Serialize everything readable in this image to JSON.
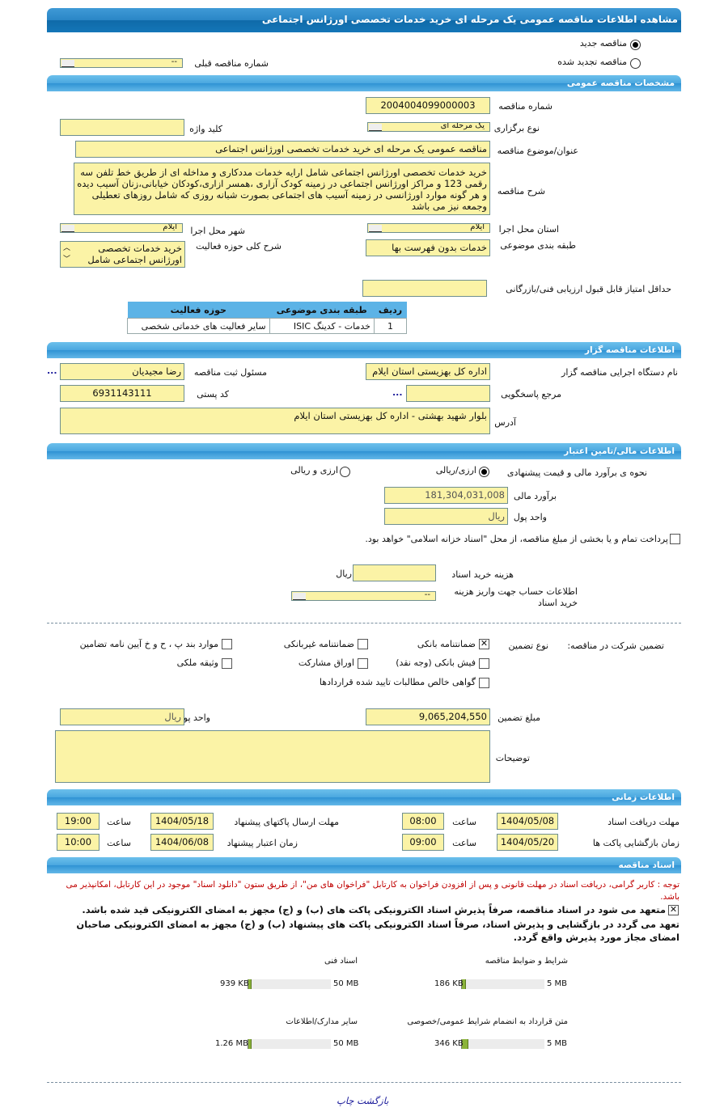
{
  "title": "مشاهده اطلاعات مناقصه عمومی یک مرحله ای خرید خدمات تخصصی اورژانس اجتماعی",
  "tender_type": {
    "new": "مناقصه جدید",
    "renewed": "مناقصه تجدید شده",
    "selected": "new",
    "prev_label": "شماره مناقصه قبلی",
    "prev_value": "--"
  },
  "general": {
    "header": "مشخصات مناقصه عمومی",
    "number_label": "شماره مناقصه",
    "number": "2004004099000003",
    "holding_label": "نوع برگزاری",
    "holding": "یک مرحله ای",
    "keyword_label": "کلید واژه",
    "keyword": "",
    "subject_label": "عنوان/موضوع مناقصه",
    "subject": "مناقصه عمومی یک مرحله ای خرید خدمات تخصصی اورژانس اجتماعی",
    "desc_label": "شرح مناقصه",
    "desc": "خرید خدمات تخصصی اورژانس اجتماعی  شامل ارایه خدمات مددکاری و مداخله ای از طریق خط تلفن سه رقمی 123 و مراکز اورژانس اجتماعی در زمینه کودک آزاری ،همسر ازاری،کودکان خیابانی،زنان آسیب دیده و هر گونه موارد اورژانسی در زمینه آسیب های اجتماعی  بصورت شبانه روزی که شامل روزهای تعطیلی  وجمعه نیز می باشد",
    "province_label": "استان محل اجرا",
    "province": "ایلام",
    "city_label": "شهر محل اجرا",
    "city": "ایلام",
    "category_label": "طبقه بندی موضوعی",
    "category": "خدمات بدون فهرست بها",
    "activity_label": "شرح کلی حوزه فعالیت",
    "activity": "خرید خدمات تخصصی اورژانس اجتماعی شامل",
    "min_score_label": "حداقل امتیاز قابل قبول ارزیابی فنی/بازرگانی",
    "min_score": "",
    "table": {
      "headers": [
        "ردیف",
        "طبقه بندی موضوعی",
        "حوزه فعالیت"
      ],
      "rows": [
        [
          "1",
          "خدمات - کدینگ ISIC",
          "سایر فعالیت های خدماتی شخصی"
        ]
      ]
    }
  },
  "organizer": {
    "header": "اطلاعات مناقصه گزار",
    "org_label": "نام دستگاه اجرایی مناقصه گزار",
    "org": "اداره کل بهزیستی استان ایلام",
    "resp_label": "مسئول ثبت مناقصه",
    "resp": "رضا مجیدیان",
    "more": "...",
    "ref_label": "مرجع پاسخگویی",
    "ref": "",
    "postal_label": "کد پستی",
    "postal": "6931143111",
    "address_label": "آدرس",
    "address": "بلوار شهید بهشتی - اداره کل بهزیستی استان ایلام"
  },
  "finance": {
    "header": "اطلاعات مالی/تامین اعتبار",
    "method_label": "نحوه ی برآورد مالی و قیمت پیشنهادی",
    "opt1": "ارزی/ریالی",
    "opt2": "ارزی و ریالی",
    "selected": "opt1",
    "estimate_label": "برآورد مالی",
    "estimate": "181,304,031,008",
    "currency_label": "واحد پول",
    "currency": "ریال",
    "treasury_text": "پرداخت تمام و یا بخشی از مبلغ مناقصه، از محل \"اسناد خزانه اسلامی\" خواهد بود.",
    "treasury_checked": false,
    "doc_cost_label": "هزینه خرید اسناد",
    "doc_cost": "",
    "doc_cost_unit": "ریال",
    "account_label": "اطلاعات حساب جهت واریز هزینه خرید اسناد",
    "account": "--"
  },
  "guarantee": {
    "label": "تضمین شرکت در مناقصه:",
    "type_label": "نوع تضمین",
    "options": [
      {
        "label": "ضمانتنامه بانکی",
        "checked": true
      },
      {
        "label": "ضمانتنامه غیربانکی",
        "checked": false
      },
      {
        "label": "موارد بند پ ، ح و خ آیین نامه تضامین",
        "checked": false
      },
      {
        "label": "فیش بانکی (وجه نقد)",
        "checked": false
      },
      {
        "label": "اوراق مشارکت",
        "checked": false
      },
      {
        "label": "وثیقه ملکی",
        "checked": false
      },
      {
        "label": "گواهی خالص مطالبات تایید شده قراردادها",
        "checked": false
      }
    ],
    "amount_label": "مبلغ تضمین",
    "amount": "9,065,204,550",
    "currency_label": "واحد پول",
    "currency": "ریال",
    "notes_label": "توضیحات",
    "notes": ""
  },
  "timing": {
    "header": "اطلاعات زمانی",
    "time_label": "ساعت",
    "doc_deadline_label": "مهلت دریافت اسناد",
    "doc_deadline": "1404/05/08",
    "doc_deadline_time": "08:00",
    "submit_label": "مهلت ارسال پاکتهای پیشنهاد",
    "submit": "1404/05/18",
    "submit_time": "19:00",
    "open_label": "زمان بازگشایی پاکت ها",
    "open": "1404/05/20",
    "open_time": "09:00",
    "valid_label": "زمان اعتبار پیشنهاد",
    "valid": "1404/06/08",
    "valid_time": "10:00"
  },
  "docs": {
    "header": "اسناد مناقصه",
    "note": "توجه : کاربر گرامی، دریافت اسناد در مهلت قانونی و پس از افزودن فراخوان به کارتابل \"فراخوان های من\"، از طریق ستون \"دانلود اسناد\" موجود در این کارتابل، امکانپذیر می باشد.",
    "commit1": "متعهد می شود در اسناد مناقصه، صرفاً پذیرش اسناد الکترونیکی پاکت های (ب) و (ج) مجهز به امضای الکترونیکی قید شده باشد.",
    "commit2": "تعهد می گردد در بازگشایی و پذیرش اسناد، صرفاً اسناد الکترونیکی پاکت های پیشنهاد (ب) و (ج) مجهز به امضای الکترونیکی صاحبان امضای مجاز مورد پذیرش واقع گردد.",
    "files": [
      {
        "label": "شرایط و ضوابط مناقصه",
        "size": "186 KB",
        "max": "5 MB",
        "fill_pct": 3.6
      },
      {
        "label": "اسناد فنی",
        "size": "939 KB",
        "max": "50 MB",
        "fill_pct": 1.8
      },
      {
        "label": "متن قرارداد به انضمام شرایط عمومی/خصوصی",
        "size": "346 KB",
        "max": "5 MB",
        "fill_pct": 6.8
      },
      {
        "label": "سایر مدارک/اطلاعات",
        "size": "1.26 MB",
        "max": "50 MB",
        "fill_pct": 2.5
      }
    ]
  },
  "footer": {
    "print": "چاپ",
    "back": "بازگشت"
  },
  "colors": {
    "header": "#1476b8",
    "section": "#4aa7df",
    "input_bg": "#fbf3a6",
    "note_red": "#c00000",
    "link": "#1a1a9a"
  }
}
